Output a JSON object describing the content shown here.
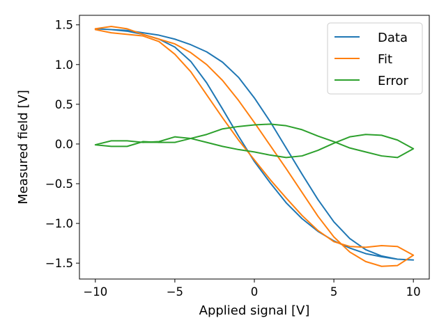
{
  "chart_data": {
    "type": "line",
    "title": "",
    "xlabel": "Applied signal [V]",
    "ylabel": "Measured field [V]",
    "xlim": [
      -11,
      11
    ],
    "ylim": [
      -1.7,
      1.62
    ],
    "xticks": [
      -10,
      -5,
      0,
      5,
      10
    ],
    "yticks": [
      -1.5,
      -1.0,
      -0.5,
      0.0,
      0.5,
      1.0,
      1.5
    ],
    "xtick_labels": [
      "−10",
      "−5",
      "0",
      "5",
      "10"
    ],
    "ytick_labels": [
      "−1.5",
      "−1.0",
      "−0.5",
      "0.0",
      "0.5",
      "1.0",
      "1.5"
    ],
    "grid": false,
    "legend_position": "top-right",
    "series": [
      {
        "name": "Data",
        "color": "#1f77b4",
        "x": [
          -10,
          -9,
          -8,
          -7,
          -6,
          -5,
          -4,
          -3,
          -2,
          -1,
          0,
          1,
          2,
          3,
          4,
          5,
          6,
          7,
          8,
          9,
          10,
          9,
          8,
          7,
          6,
          5,
          4,
          3,
          2,
          1,
          0,
          -1,
          -2,
          -3,
          -4,
          -5,
          -6,
          -7,
          -8,
          -9,
          -10
        ],
        "y": [
          1.45,
          1.44,
          1.42,
          1.38,
          1.32,
          1.22,
          1.04,
          0.77,
          0.44,
          0.1,
          -0.22,
          -0.49,
          -0.74,
          -0.94,
          -1.1,
          -1.22,
          -1.31,
          -1.38,
          -1.42,
          -1.45,
          -1.46,
          -1.45,
          -1.41,
          -1.33,
          -1.19,
          -0.98,
          -0.7,
          -0.38,
          -0.05,
          0.28,
          0.58,
          0.84,
          1.03,
          1.16,
          1.25,
          1.32,
          1.37,
          1.4,
          1.43,
          1.44,
          1.45
        ]
      },
      {
        "name": "Fit",
        "color": "#ff7f0e",
        "x": [
          -10,
          -9,
          -8,
          -7,
          -6,
          -5,
          -4,
          -3,
          -2,
          -1,
          0,
          1,
          2,
          3,
          4,
          5,
          6,
          7,
          8,
          9,
          10,
          9,
          8,
          7,
          6,
          5,
          4,
          3,
          2,
          1,
          0,
          -1,
          -2,
          -3,
          -4,
          -5,
          -6,
          -7,
          -8,
          -9,
          -10
        ],
        "y": [
          1.44,
          1.4,
          1.38,
          1.36,
          1.29,
          1.13,
          0.91,
          0.62,
          0.33,
          0.05,
          -0.2,
          -0.45,
          -0.68,
          -0.9,
          -1.09,
          -1.23,
          -1.29,
          -1.3,
          -1.28,
          -1.29,
          -1.4,
          -1.53,
          -1.54,
          -1.48,
          -1.36,
          -1.17,
          -0.91,
          -0.61,
          -0.31,
          -0.02,
          0.27,
          0.55,
          0.8,
          1.0,
          1.15,
          1.26,
          1.32,
          1.38,
          1.45,
          1.48,
          1.45
        ]
      },
      {
        "name": "Error",
        "color": "#2ca02c",
        "x": [
          -10,
          -9,
          -8,
          -7,
          -6,
          -5,
          -4,
          -3,
          -2,
          -1,
          0,
          1,
          2,
          3,
          4,
          5,
          6,
          7,
          8,
          9,
          10,
          9,
          8,
          7,
          6,
          5,
          4,
          3,
          2,
          1,
          0,
          -1,
          -2,
          -3,
          -4,
          -5,
          -6,
          -7,
          -8,
          -9,
          -10
        ],
        "y": [
          -0.01,
          0.04,
          0.04,
          0.02,
          0.03,
          0.09,
          0.07,
          0.02,
          -0.03,
          -0.07,
          -0.1,
          -0.14,
          -0.17,
          -0.15,
          -0.08,
          0.01,
          0.09,
          0.12,
          0.11,
          0.05,
          -0.06,
          -0.17,
          -0.15,
          -0.1,
          -0.05,
          0.03,
          0.1,
          0.18,
          0.23,
          0.25,
          0.24,
          0.22,
          0.19,
          0.12,
          0.07,
          0.02,
          0.02,
          0.03,
          -0.03,
          -0.03,
          -0.01
        ]
      }
    ]
  }
}
